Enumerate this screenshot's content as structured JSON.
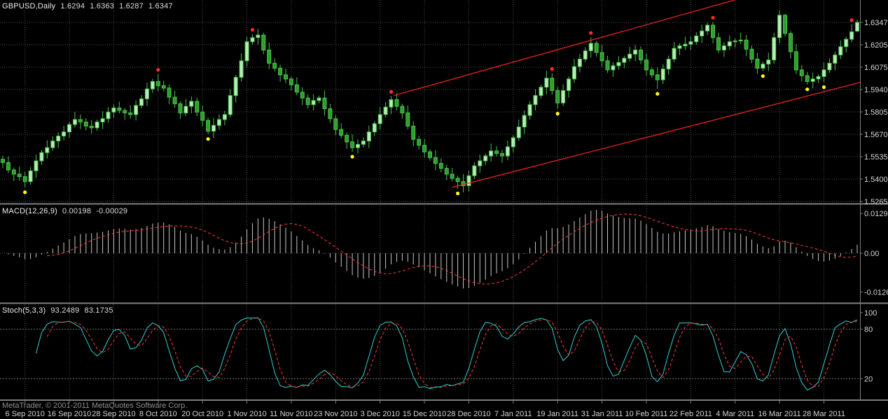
{
  "header": {
    "symbol_label": "GBPUSD,Daily",
    "open": "1.6294",
    "high": "1.6363",
    "low": "1.6287",
    "close": "1.6347"
  },
  "panels": {
    "macd": {
      "name": "MACD(12,26,9)",
      "value_main": "0.00198",
      "value_signal": "-0.00029",
      "axis_labels": [
        "0.0129",
        "0.00",
        "-0.0126"
      ]
    },
    "stoch": {
      "name": "Stoch(5,3,3)",
      "value_main": "93.2489",
      "value_signal": "83.1735",
      "axis_labels": [
        "100",
        "80",
        "20"
      ],
      "levels": [
        80,
        20
      ]
    }
  },
  "price_axis_labels": [
    "1.6347",
    "1.6205",
    "1.6075",
    "1.5940",
    "1.5805",
    "1.5670",
    "1.5535",
    "1.5400",
    "1.5265"
  ],
  "date_axis": {
    "labels": [
      "6 Sep 2010",
      "16 Sep 2010",
      "28 Sep 2010",
      "8 Oct 2010",
      "20 Oct 2010",
      "1 Nov 2010",
      "11 Nov 2010",
      "23 Nov 2010",
      "3 Dec 2010",
      "15 Dec 2010",
      "28 Dec 2010",
      "7 Jan 2011",
      "19 Jan 2011",
      "31 Jan 2011",
      "10 Feb 2011",
      "22 Feb 2011",
      "4 Mar 2011",
      "16 Mar 2011",
      "28 Mar 2011"
    ],
    "candle_indices": [
      4,
      12,
      20,
      28,
      36,
      44,
      52,
      60,
      68,
      76,
      84,
      92,
      100,
      108,
      116,
      124,
      132,
      140,
      148
    ]
  },
  "footer": {
    "copyright": "MetaTrader, © 2001-2011 MetaQuotes Software Corp."
  },
  "colors": {
    "background": "#000000",
    "grid": "#4b4b4b",
    "candle_stroke": "#4cc24c",
    "candle_bull_fill": "#b8ecb8",
    "candle_bear_fill": "#2f9e2f",
    "macd_histogram": "#c8c8c8",
    "signal_line": "#ff3b3b",
    "stoch_main": "#31d2d2",
    "trendline": "#ff2222",
    "red_dot": "#ff2b2b",
    "yellow_dot": "#ffff00",
    "axis_text": "#d4d4d4",
    "separator": "#7d7d7d",
    "level_line": "#6e6e6e"
  },
  "chart_data": {
    "type": "candlestick",
    "symbol": "GBPUSD",
    "timeframe": "Daily",
    "last_ohlc": [
      1.6294,
      1.6363,
      1.6287,
      1.6347
    ],
    "price_axis_top": 1.6347,
    "price_axis_bottom": 1.5265,
    "indicators": [
      {
        "type": "MACD",
        "params": [
          12,
          26,
          9
        ],
        "last_values": [
          0.00198,
          -0.00029
        ],
        "range": [
          -0.0126,
          0.0129
        ]
      },
      {
        "type": "Stochastic",
        "params": [
          5,
          3,
          3
        ],
        "last_values": [
          93.2489,
          83.1735
        ],
        "range": [
          0,
          100
        ],
        "levels": [
          20,
          80
        ]
      }
    ],
    "candles": [
      [
        1.552,
        1.5542,
        1.5465,
        1.55
      ],
      [
        1.55,
        1.5538,
        1.5437,
        1.5455
      ],
      [
        1.5455,
        1.547,
        1.5388,
        1.543
      ],
      [
        1.543,
        1.5475,
        1.539,
        1.5415
      ],
      [
        1.5415,
        1.5445,
        1.535,
        1.5385
      ],
      [
        1.5385,
        1.5472,
        1.5367,
        1.545
      ],
      [
        1.545,
        1.5548,
        1.5408,
        1.551
      ],
      [
        1.551,
        1.5575,
        1.5485,
        1.556
      ],
      [
        1.556,
        1.5635,
        1.5525,
        1.559
      ],
      [
        1.559,
        1.566,
        1.5572,
        1.563
      ],
      [
        1.563,
        1.5682,
        1.5588,
        1.566
      ],
      [
        1.566,
        1.5723,
        1.5635,
        1.5685
      ],
      [
        1.5685,
        1.5745,
        1.565,
        1.573
      ],
      [
        1.573,
        1.5805,
        1.5712,
        1.576
      ],
      [
        1.576,
        1.579,
        1.5703,
        1.5745
      ],
      [
        1.5745,
        1.5767,
        1.5695,
        1.572
      ],
      [
        1.572,
        1.5758,
        1.5675,
        1.571
      ],
      [
        1.571,
        1.576,
        1.5692,
        1.5745
      ],
      [
        1.5745,
        1.581,
        1.5703,
        1.5765
      ],
      [
        1.5765,
        1.5835,
        1.574,
        1.5805
      ],
      [
        1.5805,
        1.5852,
        1.577,
        1.583
      ],
      [
        1.583,
        1.5868,
        1.5797,
        1.5815
      ],
      [
        1.5815,
        1.583,
        1.5758,
        1.58
      ],
      [
        1.58,
        1.5845,
        1.5765,
        1.579
      ],
      [
        1.579,
        1.5875,
        1.5755,
        1.5845
      ],
      [
        1.5845,
        1.5907,
        1.5827,
        1.5885
      ],
      [
        1.5885,
        1.5983,
        1.5843,
        1.5945
      ],
      [
        1.5945,
        1.6005,
        1.592,
        1.599
      ],
      [
        1.599,
        1.6035,
        1.593,
        1.5965
      ],
      [
        1.5965,
        1.5995,
        1.5932,
        1.595
      ],
      [
        1.595,
        1.5972,
        1.5853,
        1.5895
      ],
      [
        1.5895,
        1.5933,
        1.583,
        1.5855
      ],
      [
        1.5855,
        1.587,
        1.5765,
        1.58
      ],
      [
        1.58,
        1.5885,
        1.5782,
        1.584
      ],
      [
        1.584,
        1.59,
        1.5798,
        1.587
      ],
      [
        1.587,
        1.5892,
        1.578,
        1.5805
      ],
      [
        1.5805,
        1.5843,
        1.572,
        1.5755
      ],
      [
        1.5755,
        1.577,
        1.5672,
        1.569
      ],
      [
        1.569,
        1.577,
        1.5648,
        1.5725
      ],
      [
        1.5725,
        1.579,
        1.57,
        1.576
      ],
      [
        1.576,
        1.5812,
        1.5725,
        1.579
      ],
      [
        1.579,
        1.5943,
        1.5772,
        1.5905
      ],
      [
        1.5905,
        1.603,
        1.5863,
        1.6015
      ],
      [
        1.6015,
        1.616,
        1.599,
        1.6115
      ],
      [
        1.6115,
        1.626,
        1.608,
        1.623
      ],
      [
        1.623,
        1.6277,
        1.6212,
        1.6255
      ],
      [
        1.6255,
        1.6308,
        1.6213,
        1.627
      ],
      [
        1.627,
        1.6285,
        1.6155,
        1.618
      ],
      [
        1.618,
        1.6225,
        1.6065,
        1.61
      ],
      [
        1.61,
        1.613,
        1.6052,
        1.607
      ],
      [
        1.607,
        1.6092,
        1.5988,
        1.603
      ],
      [
        1.603,
        1.6068,
        1.598,
        1.6005
      ],
      [
        1.6005,
        1.602,
        1.5935,
        1.597
      ],
      [
        1.597,
        1.6015,
        1.5907,
        1.5925
      ],
      [
        1.5925,
        1.5955,
        1.5848,
        1.589
      ],
      [
        1.589,
        1.5912,
        1.5825,
        1.585
      ],
      [
        1.585,
        1.5913,
        1.5815,
        1.5875
      ],
      [
        1.5875,
        1.5905,
        1.5857,
        1.589
      ],
      [
        1.589,
        1.5935,
        1.5783,
        1.5825
      ],
      [
        1.5825,
        1.5855,
        1.574,
        1.5765
      ],
      [
        1.5765,
        1.5787,
        1.5665,
        1.57
      ],
      [
        1.57,
        1.5738,
        1.5647,
        1.5665
      ],
      [
        1.5665,
        1.568,
        1.5583,
        1.5625
      ],
      [
        1.5625,
        1.567,
        1.5565,
        1.559
      ],
      [
        1.559,
        1.564,
        1.5555,
        1.561
      ],
      [
        1.561,
        1.5652,
        1.5592,
        1.563
      ],
      [
        1.563,
        1.5723,
        1.5588,
        1.5685
      ],
      [
        1.5685,
        1.575,
        1.566,
        1.5735
      ],
      [
        1.5735,
        1.5835,
        1.57,
        1.579
      ],
      [
        1.579,
        1.5865,
        1.5772,
        1.5835
      ],
      [
        1.5835,
        1.5902,
        1.5793,
        1.588
      ],
      [
        1.588,
        1.5918,
        1.5815,
        1.584
      ],
      [
        1.584,
        1.5855,
        1.5765,
        1.58
      ],
      [
        1.58,
        1.5845,
        1.5702,
        1.572
      ],
      [
        1.572,
        1.575,
        1.5598,
        1.564
      ],
      [
        1.564,
        1.5662,
        1.558,
        1.5605
      ],
      [
        1.5605,
        1.5643,
        1.553,
        1.5565
      ],
      [
        1.5565,
        1.558,
        1.5512,
        1.553
      ],
      [
        1.553,
        1.5575,
        1.5453,
        1.5495
      ],
      [
        1.5495,
        1.5525,
        1.544,
        1.5465
      ],
      [
        1.5465,
        1.5487,
        1.5395,
        1.543
      ],
      [
        1.543,
        1.5468,
        1.5387,
        1.5405
      ],
      [
        1.5405,
        1.542,
        1.5343,
        1.5385
      ],
      [
        1.5385,
        1.543,
        1.532,
        1.536
      ],
      [
        1.536,
        1.545,
        1.5325,
        1.542
      ],
      [
        1.542,
        1.5502,
        1.5402,
        1.548
      ],
      [
        1.548,
        1.5548,
        1.5438,
        1.551
      ],
      [
        1.551,
        1.5555,
        1.5485,
        1.554
      ],
      [
        1.554,
        1.5615,
        1.5505,
        1.557
      ],
      [
        1.557,
        1.56,
        1.5537,
        1.5555
      ],
      [
        1.5555,
        1.5577,
        1.5498,
        1.554
      ],
      [
        1.554,
        1.5633,
        1.5515,
        1.5595
      ],
      [
        1.5595,
        1.5665,
        1.556,
        1.565
      ],
      [
        1.565,
        1.576,
        1.5632,
        1.5715
      ],
      [
        1.5715,
        1.5815,
        1.5673,
        1.5785
      ],
      [
        1.5785,
        1.5872,
        1.576,
        1.585
      ],
      [
        1.585,
        1.5943,
        1.5815,
        1.5905
      ],
      [
        1.5905,
        1.597,
        1.5887,
        1.5955
      ],
      [
        1.5955,
        1.6055,
        1.5913,
        1.601
      ],
      [
        1.601,
        1.604,
        1.591,
        1.5935
      ],
      [
        1.5935,
        1.5957,
        1.5825,
        1.586
      ],
      [
        1.586,
        1.5973,
        1.5842,
        1.5935
      ],
      [
        1.5935,
        1.602,
        1.5893,
        1.6005
      ],
      [
        1.6005,
        1.6125,
        1.598,
        1.608
      ],
      [
        1.608,
        1.6155,
        1.6045,
        1.6125
      ],
      [
        1.6125,
        1.6197,
        1.6107,
        1.6175
      ],
      [
        1.6175,
        1.6258,
        1.6133,
        1.622
      ],
      [
        1.622,
        1.6235,
        1.614,
        1.6165
      ],
      [
        1.6165,
        1.621,
        1.608,
        1.6115
      ],
      [
        1.6115,
        1.6145,
        1.6042,
        1.606
      ],
      [
        1.606,
        1.6107,
        1.6018,
        1.6085
      ],
      [
        1.6085,
        1.6143,
        1.606,
        1.6105
      ],
      [
        1.6105,
        1.6145,
        1.607,
        1.613
      ],
      [
        1.613,
        1.62,
        1.6112,
        1.6155
      ],
      [
        1.6155,
        1.621,
        1.6113,
        1.618
      ],
      [
        1.618,
        1.6202,
        1.6095,
        1.612
      ],
      [
        1.612,
        1.6158,
        1.6025,
        1.606
      ],
      [
        1.606,
        1.6075,
        1.6012,
        1.603
      ],
      [
        1.603,
        1.6075,
        1.5945,
        1.6
      ],
      [
        1.6,
        1.6095,
        1.5975,
        1.6065
      ],
      [
        1.6065,
        1.6147,
        1.603,
        1.6125
      ],
      [
        1.6125,
        1.6228,
        1.6107,
        1.619
      ],
      [
        1.619,
        1.622,
        1.6148,
        1.6205
      ],
      [
        1.6205,
        1.626,
        1.618,
        1.6215
      ],
      [
        1.6215,
        1.626,
        1.618,
        1.623
      ],
      [
        1.623,
        1.6287,
        1.6212,
        1.6265
      ],
      [
        1.6265,
        1.6333,
        1.6223,
        1.6295
      ],
      [
        1.6295,
        1.6345,
        1.627,
        1.633
      ],
      [
        1.633,
        1.635,
        1.622,
        1.6255
      ],
      [
        1.6255,
        1.6285,
        1.6162,
        1.618
      ],
      [
        1.618,
        1.6227,
        1.6138,
        1.6205
      ],
      [
        1.6205,
        1.6268,
        1.618,
        1.623
      ],
      [
        1.623,
        1.625,
        1.6195,
        1.6235
      ],
      [
        1.6235,
        1.6285,
        1.6217,
        1.624
      ],
      [
        1.624,
        1.627,
        1.6143,
        1.6185
      ],
      [
        1.6185,
        1.6207,
        1.61,
        1.6125
      ],
      [
        1.6125,
        1.6163,
        1.6035,
        1.607
      ],
      [
        1.607,
        1.611,
        1.6052,
        1.6095
      ],
      [
        1.6095,
        1.6165,
        1.6053,
        1.612
      ],
      [
        1.612,
        1.6285,
        1.6095,
        1.6255
      ],
      [
        1.6255,
        1.642,
        1.622,
        1.639
      ],
      [
        1.639,
        1.64,
        1.6262,
        1.628
      ],
      [
        1.628,
        1.6295,
        1.6128,
        1.617
      ],
      [
        1.617,
        1.6215,
        1.6035,
        1.606
      ],
      [
        1.606,
        1.609,
        1.599,
        1.6025
      ],
      [
        1.6025,
        1.6047,
        1.5972,
        1.599
      ],
      [
        1.599,
        1.6043,
        1.5948,
        1.6005
      ],
      [
        1.6005,
        1.6035,
        1.598,
        1.602
      ],
      [
        1.602,
        1.6105,
        1.5985,
        1.606
      ],
      [
        1.606,
        1.613,
        1.6042,
        1.61
      ],
      [
        1.61,
        1.6172,
        1.6058,
        1.615
      ],
      [
        1.615,
        1.6238,
        1.6125,
        1.62
      ],
      [
        1.62,
        1.626,
        1.6165,
        1.6245
      ],
      [
        1.6245,
        1.6335,
        1.6227,
        1.629
      ],
      [
        1.6294,
        1.6363,
        1.6287,
        1.6347
      ]
    ],
    "trendlines": [
      {
        "i1": 81,
        "p1": 1.535,
        "i2": 154.6,
        "p2": 1.5985
      },
      {
        "i1": 70.5,
        "p1": 1.5905,
        "i2": 132,
        "p2": 1.6483
      }
    ],
    "signals": {
      "red_dots": [
        28,
        45,
        70,
        99,
        106,
        128,
        153
      ],
      "yellow_dots": [
        4,
        37,
        63,
        82,
        100,
        118,
        137,
        145,
        148
      ]
    }
  }
}
